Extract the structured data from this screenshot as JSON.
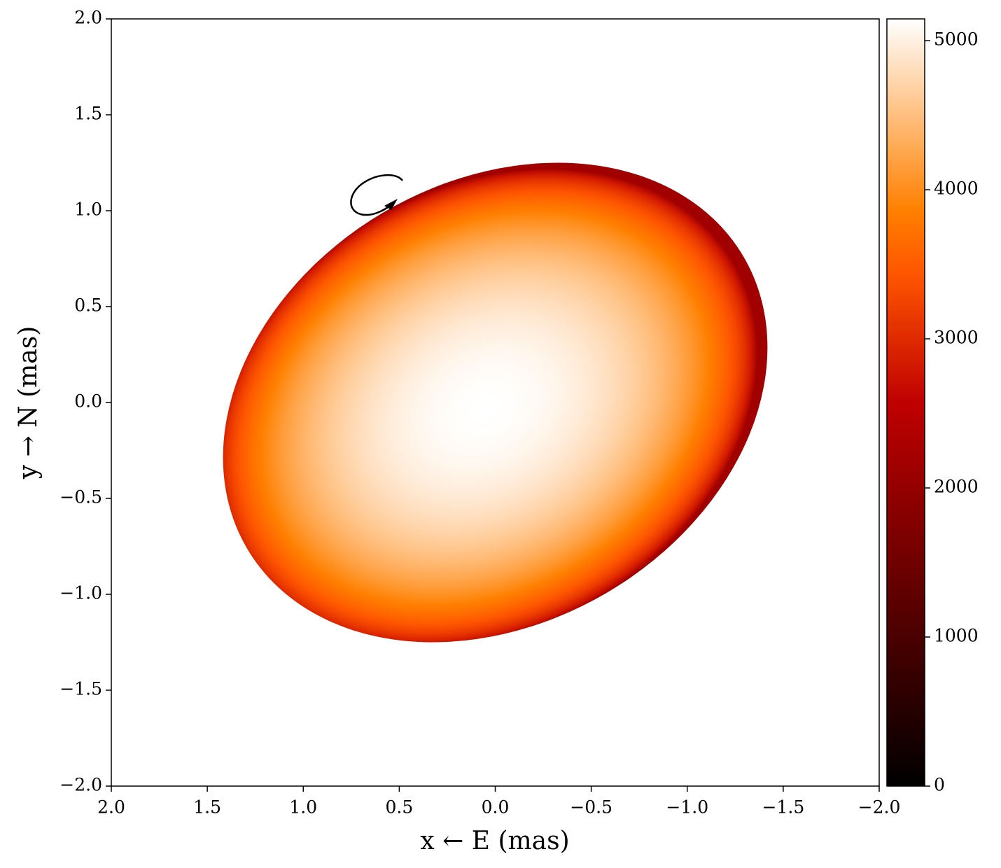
{
  "chart_data": {
    "type": "image",
    "xlabel": "x ← E (mas)",
    "ylabel": "y → N (mas)",
    "xlim": [
      2,
      -2
    ],
    "ylim": [
      -2,
      2
    ],
    "xticks": [
      {
        "value": 2,
        "label": "2.0"
      },
      1.5,
      {
        "value": 1,
        "label": "1.0"
      },
      0.5,
      {
        "value": 0,
        "label": "0.0"
      },
      {
        "value": -0.5,
        "label": "−0.5"
      },
      {
        "value": -1,
        "label": "−1.0"
      },
      {
        "value": -1.5,
        "label": "−1.5"
      },
      {
        "value": -2,
        "label": "−2.0"
      }
    ],
    "yticks": [
      {
        "value": -2,
        "label": "−2.0"
      },
      {
        "value": -1.5,
        "label": "−1.5"
      },
      {
        "value": -1,
        "label": "−1.0"
      },
      {
        "value": -0.5,
        "label": "−0.5"
      },
      {
        "value": 0,
        "label": "0.0"
      },
      0.5,
      {
        "value": 1,
        "label": "1.0"
      },
      1.5,
      {
        "value": 2,
        "label": "2.0"
      }
    ],
    "colormap": "gist_heat",
    "clim": [
      0,
      5146
    ],
    "cticks": [
      0,
      1000,
      2000,
      3000,
      4000,
      5000
    ],
    "star": {
      "center_x": 0,
      "center_y": 0,
      "semi_major": 1.5,
      "semi_minor": 1.15,
      "angle_deg": 30.5,
      "peak": 5146
    }
  }
}
